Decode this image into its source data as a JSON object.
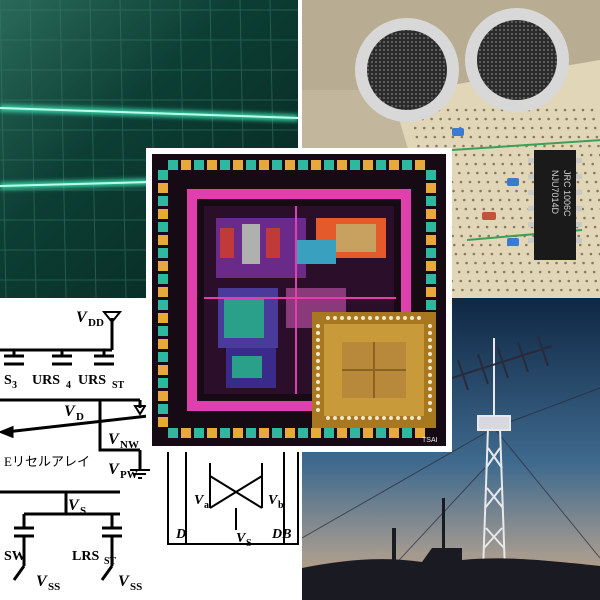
{
  "collage": {
    "panels": [
      {
        "name": "oscilloscope-photo"
      },
      {
        "name": "ultrasonic-sensor-board-photo",
        "chip_text": [
          "NJU7014D",
          "JRC 1006C"
        ]
      },
      {
        "name": "chip-layout-image",
        "corner_mark": "TSAI"
      },
      {
        "name": "circuit-schematic",
        "labels": {
          "vdd": "V",
          "vdd_sub": "DD",
          "s3": "S",
          "s3_sub": "3",
          "urs4": "URS",
          "urs4_sub": "4",
          "urs_st": "URS",
          "urs_st_sub": "ST",
          "vd": "V",
          "vd_sub": "D",
          "vnw": "V",
          "vnw_sub": "NW",
          "vpw": "V",
          "vpw_sub": "PW",
          "vs": "V",
          "vs_sub": "S",
          "array_caption": "Eリセルアレイ",
          "sw": "SW",
          "lrs_st": "LRS",
          "lrs_st_sub": "ST",
          "vss_left": "V",
          "vss_left_sub": "SS",
          "vss_right": "V",
          "vss_right_sub": "SS",
          "va": "V",
          "va_sub": "a",
          "vb": "V",
          "vb_sub": "b",
          "inset_vs": "V",
          "inset_vs_sub": "S",
          "d": "D",
          "db": "DB"
        }
      },
      {
        "name": "antenna-tower-dusk-photo"
      }
    ]
  },
  "colors": {
    "scope_bg": "#0c3e34",
    "scope_trace": "#3fe8b7",
    "board_bg": "#c2b79d",
    "chip_bg": "#160a14",
    "chip_pad": "#e7a93c",
    "chip_magenta": "#e03fae",
    "sky_top": "#0f2744",
    "sky_bottom": "#c8a070"
  }
}
